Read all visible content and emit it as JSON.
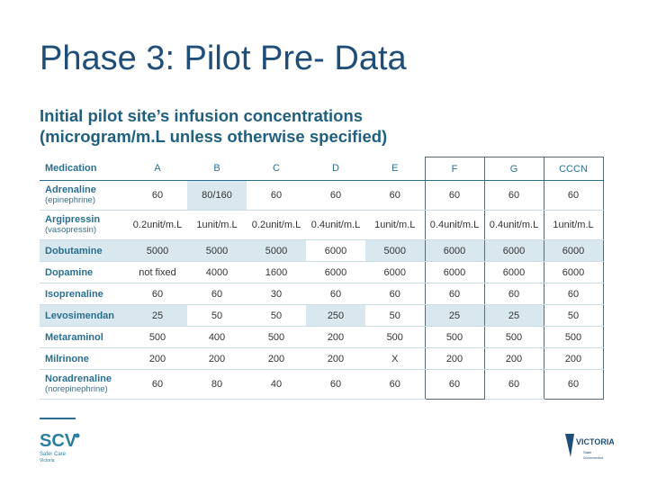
{
  "slide": {
    "title": "Phase 3: Pilot Pre- Data",
    "subtitle_line1": "Initial pilot site’s infusion concentrations",
    "subtitle_line2": "(microgram/m.L unless otherwise specified)"
  },
  "table": {
    "headers": [
      "Medication",
      "A",
      "B",
      "C",
      "D",
      "E",
      "F",
      "G",
      "CCCN"
    ],
    "rows": [
      {
        "name": "Adrenaline",
        "sub": "(epinephrine)",
        "values": [
          "60",
          "80/160",
          "60",
          "60",
          "60",
          "60",
          "60",
          "60"
        ]
      },
      {
        "name": "Argipressin",
        "sub": "(vasopressin)",
        "values": [
          "0.2unit/m.L",
          "1unit/m.L",
          "0.2unit/m.L",
          "0.4unit/m.L",
          "1unit/m.L",
          "0.4unit/m.L",
          "0.4unit/m.L",
          "1unit/m.L"
        ]
      },
      {
        "name": "Dobutamine",
        "sub": "",
        "values": [
          "5000",
          "5000",
          "5000",
          "6000",
          "5000",
          "6000",
          "6000",
          "6000"
        ]
      },
      {
        "name": "Dopamine",
        "sub": "",
        "values": [
          "not fixed",
          "4000",
          "1600",
          "6000",
          "6000",
          "6000",
          "6000",
          "6000"
        ]
      },
      {
        "name": "Isoprenaline",
        "sub": "",
        "values": [
          "60",
          "60",
          "30",
          "60",
          "60",
          "60",
          "60",
          "60"
        ]
      },
      {
        "name": "Levosimendan",
        "sub": "",
        "values": [
          "25",
          "50",
          "50",
          "250",
          "50",
          "25",
          "25",
          "50"
        ]
      },
      {
        "name": "Metaraminol",
        "sub": "",
        "values": [
          "500",
          "400",
          "500",
          "200",
          "500",
          "500",
          "500",
          "500"
        ]
      },
      {
        "name": "Milrinone",
        "sub": "",
        "values": [
          "200",
          "200",
          "200",
          "200",
          "X",
          "200",
          "200",
          "200"
        ]
      },
      {
        "name": "Noradrenaline",
        "sub": "(norepinephrine)",
        "values": [
          "60",
          "80",
          "40",
          "60",
          "60",
          "60",
          "60",
          "60"
        ]
      }
    ]
  },
  "logos": {
    "left_text": "SCV",
    "left_sub": "Safer Care Victoria",
    "right_text": "VICTORIA",
    "right_sub": "State Government"
  },
  "colors": {
    "title": "#1f4e79",
    "subtitle": "#1f5f80",
    "header_text": "#2a6f8f",
    "shade": "#d9e8ef",
    "frame": "#5a6a72"
  }
}
